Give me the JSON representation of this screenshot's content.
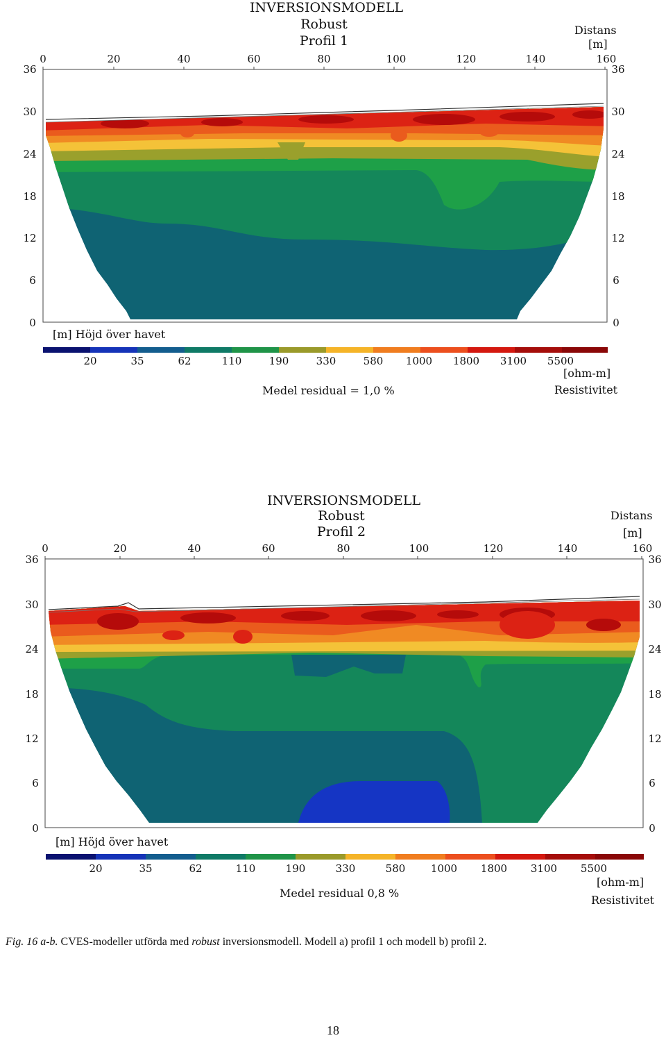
{
  "panels": [
    {
      "title": "INVERSIONSMODELL",
      "method": "Robust",
      "profile": "Profil 1",
      "distance_label": "Distans",
      "distance_unit": "[m]",
      "x_ticks": [
        "0",
        "20",
        "40",
        "60",
        "80",
        "100",
        "120",
        "140",
        "160"
      ],
      "y_ticks": [
        "36",
        "30",
        "24",
        "18",
        "12",
        "6",
        "0"
      ],
      "y_axis_label": "[m]  Höjd över havet",
      "colorbar_labels": [
        "20",
        "35",
        "62",
        "110",
        "190",
        "330",
        "580",
        "1000",
        "1800",
        "3100",
        "5500"
      ],
      "resistivity_unit": "[ohm-m]",
      "resistivity_label": "Resistivitet",
      "residual_text": "Medel residual = 1,0 %"
    },
    {
      "title": "INVERSIONSMODELL",
      "method": "Robust",
      "profile": "Profil 2",
      "distance_label": "Distans",
      "distance_unit": "[m]",
      "x_ticks": [
        "0",
        "20",
        "40",
        "60",
        "80",
        "100",
        "120",
        "140",
        "160"
      ],
      "y_ticks": [
        "36",
        "30",
        "24",
        "18",
        "12",
        "6",
        "0"
      ],
      "y_axis_label": "[m]  Höjd över havet",
      "colorbar_labels": [
        "20",
        "35",
        "62",
        "110",
        "190",
        "330",
        "580",
        "1000",
        "1800",
        "3100",
        "5500"
      ],
      "resistivity_unit": "[ohm-m]",
      "resistivity_label": "Resistivitet",
      "residual_text": "Medel residual 0,8 %"
    }
  ],
  "colorbar_colors": [
    "#0a1270",
    "#1533b8",
    "#135d8e",
    "#0f7a66",
    "#1f9448",
    "#9a9a2a",
    "#f5b428",
    "#f07d1f",
    "#ec4f1e",
    "#d4180f",
    "#a50d0a",
    "#8a0707"
  ],
  "layer_colors": {
    "deep": "#0f6373",
    "mid_green": "#14875a",
    "green": "#1ea048",
    "olive": "#9aa02c",
    "yellow": "#f4c238",
    "orange": "#f08a23",
    "red_orange": "#ea5b1d",
    "red": "#dc2214",
    "dark_red": "#b50b0a",
    "blue": "#1535c4"
  },
  "caption": {
    "fig_label": "Fig. 16 a-b.",
    "text_before": " CVES-modeller utförda med ",
    "italic_word": "robust",
    "text_after": " inversionsmodell. Modell a) profil 1 och modell b) profil 2."
  },
  "page_number": "18"
}
